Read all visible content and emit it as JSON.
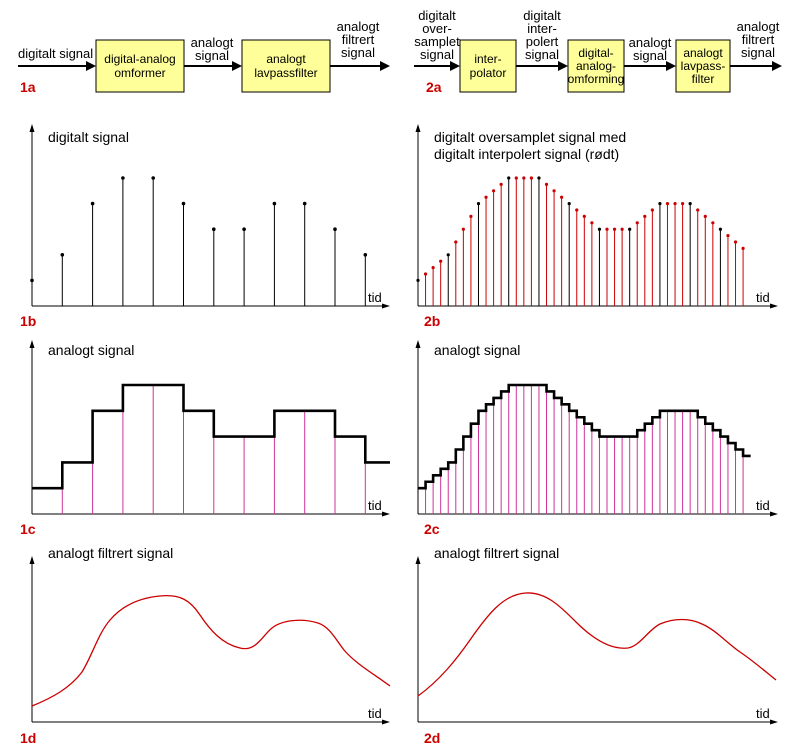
{
  "colors": {
    "red": "#cc0000",
    "magenta": "#cc3399",
    "box": "#ffff99"
  },
  "diagram1a": {
    "label": "1a",
    "input": "digitalt signal",
    "box1": [
      "digital-analog",
      "omformer"
    ],
    "mid": [
      "analogt",
      "signal"
    ],
    "box2": [
      "analogt",
      "lavpassfilter"
    ],
    "output": [
      "analogt",
      "filtrert",
      "signal"
    ]
  },
  "diagram2a": {
    "label": "2a",
    "input": [
      "digitalt",
      "over-",
      "samplet",
      "signal"
    ],
    "box1": [
      "inter-",
      "polator"
    ],
    "mid1": [
      "digitalt",
      "inter-",
      "polert",
      "signal"
    ],
    "box2": [
      "digital-",
      "analog-",
      "omforming"
    ],
    "mid2": [
      "analogt",
      "signal"
    ],
    "box3": [
      "analogt",
      "lavpass-",
      "filter"
    ],
    "output": [
      "analogt",
      "filtrert",
      "signal"
    ]
  },
  "plots": {
    "p1b": {
      "label": "1b",
      "title": [
        "digitalt signal"
      ],
      "xlabel": "tid"
    },
    "p2b": {
      "label": "2b",
      "title": [
        "digitalt oversamplet signal med",
        "digitalt interpolert signal (rødt)"
      ],
      "xlabel": "tid"
    },
    "p1c": {
      "label": "1c",
      "title": [
        "analogt signal"
      ],
      "xlabel": "tid"
    },
    "p2c": {
      "label": "2c",
      "title": [
        "analogt signal"
      ],
      "xlabel": "tid"
    },
    "p1d": {
      "label": "1d",
      "title": [
        "analogt filtrert signal"
      ],
      "xlabel": "tid"
    },
    "p2d": {
      "label": "2d",
      "title": [
        "analogt filtrert signal"
      ],
      "xlabel": "tid"
    }
  },
  "samples": [
    0.2,
    0.4,
    0.8,
    1.0,
    1.0,
    0.8,
    0.6,
    0.6,
    0.8,
    0.8,
    0.6,
    0.4
  ],
  "oversampled": [
    0.2,
    0.25,
    0.3,
    0.35,
    0.4,
    0.5,
    0.6,
    0.7,
    0.8,
    0.85,
    0.9,
    0.95,
    1.0,
    1.0,
    1.0,
    1.0,
    1.0,
    0.95,
    0.9,
    0.85,
    0.8,
    0.75,
    0.7,
    0.65,
    0.6,
    0.6,
    0.6,
    0.6,
    0.6,
    0.65,
    0.7,
    0.75,
    0.8,
    0.8,
    0.8,
    0.8,
    0.8,
    0.75,
    0.7,
    0.65,
    0.6,
    0.55,
    0.5,
    0.45
  ]
}
